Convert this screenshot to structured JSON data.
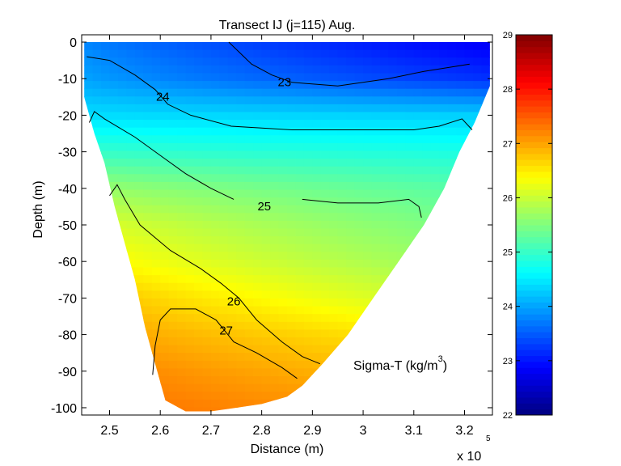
{
  "chart_data": {
    "type": "heatmap",
    "title": "Transect IJ  (j=115)  Aug.",
    "xlabel": "Distance (m)",
    "ylabel": "Depth (m)",
    "x_exponent_label": "x 10",
    "x_exponent_power": "5",
    "xlim": [
      2.445,
      3.255
    ],
    "ylim": [
      -102,
      2
    ],
    "x_ticks": [
      2.5,
      2.6,
      2.7,
      2.8,
      2.9,
      3.0,
      3.1,
      3.2
    ],
    "x_tick_labels": [
      "2.5",
      "2.6",
      "2.7",
      "2.8",
      "2.9",
      "3",
      "3.1",
      "3.2"
    ],
    "y_ticks": [
      0,
      -10,
      -20,
      -30,
      -40,
      -50,
      -60,
      -70,
      -80,
      -90,
      -100
    ],
    "y_tick_labels": [
      "0",
      "-10",
      "-20",
      "-30",
      "-40",
      "-50",
      "-60",
      "-70",
      "-80",
      "-90",
      "-100"
    ],
    "field_label": "Sigma-T (kg/m",
    "field_label_power": "3",
    "field_label_close": ")",
    "colorbar": {
      "range": [
        22,
        29
      ],
      "ticks": [
        22,
        23,
        24,
        25,
        26,
        27,
        28,
        29
      ],
      "tick_labels": [
        "22",
        "23",
        "24",
        "25",
        "26",
        "27",
        "28",
        "29"
      ],
      "colormap": "jet"
    },
    "section_outline": [
      [
        2.45,
        -15
      ],
      [
        2.47,
        -25
      ],
      [
        2.49,
        -33
      ],
      [
        2.51,
        -45
      ],
      [
        2.53,
        -55
      ],
      [
        2.55,
        -65
      ],
      [
        2.57,
        -78
      ],
      [
        2.59,
        -88
      ],
      [
        2.61,
        -98
      ],
      [
        2.65,
        -101
      ],
      [
        2.7,
        -101
      ],
      [
        2.75,
        -100
      ],
      [
        2.8,
        -99
      ],
      [
        2.85,
        -97
      ],
      [
        2.88,
        -94
      ],
      [
        2.92,
        -88
      ],
      [
        2.97,
        -80
      ],
      [
        3.02,
        -70
      ],
      [
        3.07,
        -60
      ],
      [
        3.12,
        -50
      ],
      [
        3.16,
        -40
      ],
      [
        3.19,
        -30
      ],
      [
        3.22,
        -22
      ],
      [
        3.25,
        -12
      ],
      [
        3.25,
        0
      ],
      [
        2.45,
        0
      ]
    ],
    "field_profile": {
      "depth": [
        0,
        -10,
        -20,
        -30,
        -40,
        -50,
        -60,
        -70,
        -80,
        -90,
        -100
      ],
      "sigma_t_west": [
        23.8,
        24.0,
        24.4,
        25.0,
        25.7,
        26.2,
        26.5,
        26.9,
        27.1,
        27.3,
        27.4
      ],
      "sigma_t_east": [
        22.8,
        23.2,
        24.3,
        24.8,
        25.2,
        25.4,
        25.6,
        25.9,
        26.4,
        26.7,
        27.0
      ]
    },
    "contours": [
      {
        "level": 23,
        "label": "23",
        "label_at": [
          2.845,
          -12
        ],
        "points": [
          [
            2.735,
            0
          ],
          [
            2.78,
            -6
          ],
          [
            2.82,
            -9
          ],
          [
            2.86,
            -11
          ],
          [
            2.95,
            -12
          ],
          [
            3.05,
            -10
          ],
          [
            3.12,
            -8
          ],
          [
            3.21,
            -6
          ]
        ]
      },
      {
        "level": 24,
        "label": "24",
        "label_at": [
          2.605,
          -16
        ],
        "points": [
          [
            2.455,
            -4
          ],
          [
            2.5,
            -5
          ],
          [
            2.55,
            -9
          ],
          [
            2.59,
            -13
          ],
          [
            2.615,
            -17
          ],
          [
            2.66,
            -20
          ],
          [
            2.74,
            -23
          ],
          [
            2.86,
            -24
          ],
          [
            3.0,
            -24
          ],
          [
            3.1,
            -24
          ],
          [
            3.15,
            -23
          ],
          [
            3.195,
            -21
          ],
          [
            3.215,
            -24
          ]
        ]
      },
      {
        "level": 24.5,
        "label": "",
        "label_at": null,
        "points": [
          [
            2.46,
            -22
          ],
          [
            2.47,
            -19
          ],
          [
            2.49,
            -21
          ],
          [
            2.55,
            -26
          ],
          [
            2.6,
            -31
          ],
          [
            2.65,
            -36
          ],
          [
            2.7,
            -40
          ],
          [
            2.745,
            -43
          ]
        ]
      },
      {
        "level": 25,
        "label": "25",
        "label_at": [
          2.805,
          -46
        ],
        "points": [
          [
            2.88,
            -43
          ],
          [
            2.95,
            -44
          ],
          [
            3.03,
            -44
          ],
          [
            3.09,
            -43
          ],
          [
            3.11,
            -45
          ],
          [
            3.115,
            -48
          ]
        ]
      },
      {
        "level": 26,
        "label": "26",
        "label_at": [
          2.745,
          -72
        ],
        "points": [
          [
            2.5,
            -42
          ],
          [
            2.515,
            -39
          ],
          [
            2.53,
            -43
          ],
          [
            2.56,
            -50
          ],
          [
            2.62,
            -57
          ],
          [
            2.68,
            -62
          ],
          [
            2.72,
            -66
          ],
          [
            2.755,
            -70
          ],
          [
            2.79,
            -76
          ],
          [
            2.84,
            -82
          ],
          [
            2.88,
            -86
          ],
          [
            2.915,
            -88
          ]
        ]
      },
      {
        "level": 27,
        "label": "27",
        "label_at": [
          2.73,
          -80
        ],
        "points": [
          [
            2.585,
            -91
          ],
          [
            2.59,
            -83
          ],
          [
            2.6,
            -76
          ],
          [
            2.62,
            -73
          ],
          [
            2.67,
            -73
          ],
          [
            2.71,
            -76
          ],
          [
            2.745,
            -82
          ],
          [
            2.79,
            -85
          ],
          [
            2.84,
            -89
          ],
          [
            2.87,
            -92
          ]
        ]
      }
    ]
  }
}
